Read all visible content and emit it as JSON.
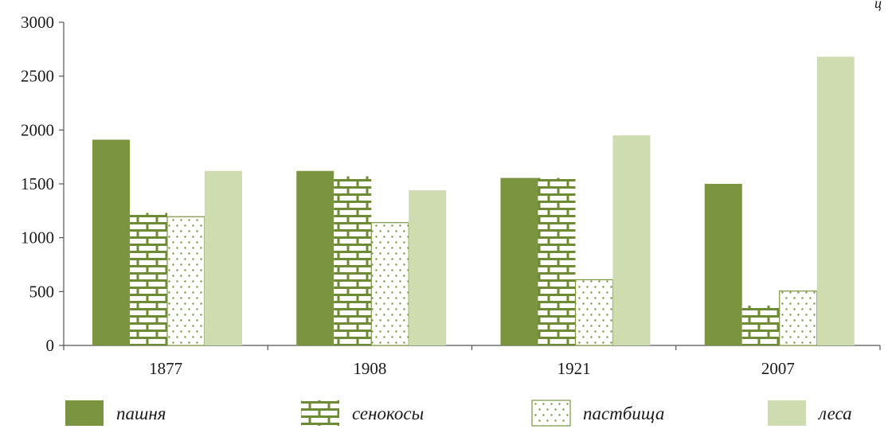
{
  "corner_mark": "ц",
  "colors": {
    "pashnya": "#7a9440",
    "hay_pattern": "#6e8a34",
    "pasture_dots": "#7a9440",
    "forest": "#cfdcb0",
    "axis": "#555555"
  },
  "chart_data": {
    "type": "bar",
    "title": "",
    "xlabel": "",
    "ylabel": "",
    "ylim": [
      0,
      3000
    ],
    "yticks": [
      0,
      500,
      1000,
      1500,
      2000,
      2500,
      3000
    ],
    "categories": [
      "1877",
      "1908",
      "1921",
      "2007"
    ],
    "series": [
      {
        "name": "пашня",
        "values": [
          1910,
          1620,
          1555,
          1500
        ],
        "fill": "solid-dark"
      },
      {
        "name": "сенокосы",
        "values": [
          1230,
          1570,
          1555,
          370
        ],
        "fill": "brick"
      },
      {
        "name": "пастбища",
        "values": [
          1195,
          1140,
          610,
          505
        ],
        "fill": "dots"
      },
      {
        "name": "леса",
        "values": [
          1620,
          1440,
          1950,
          2680
        ],
        "fill": "solid-light"
      }
    ],
    "legend_position": "bottom",
    "grid": false
  }
}
